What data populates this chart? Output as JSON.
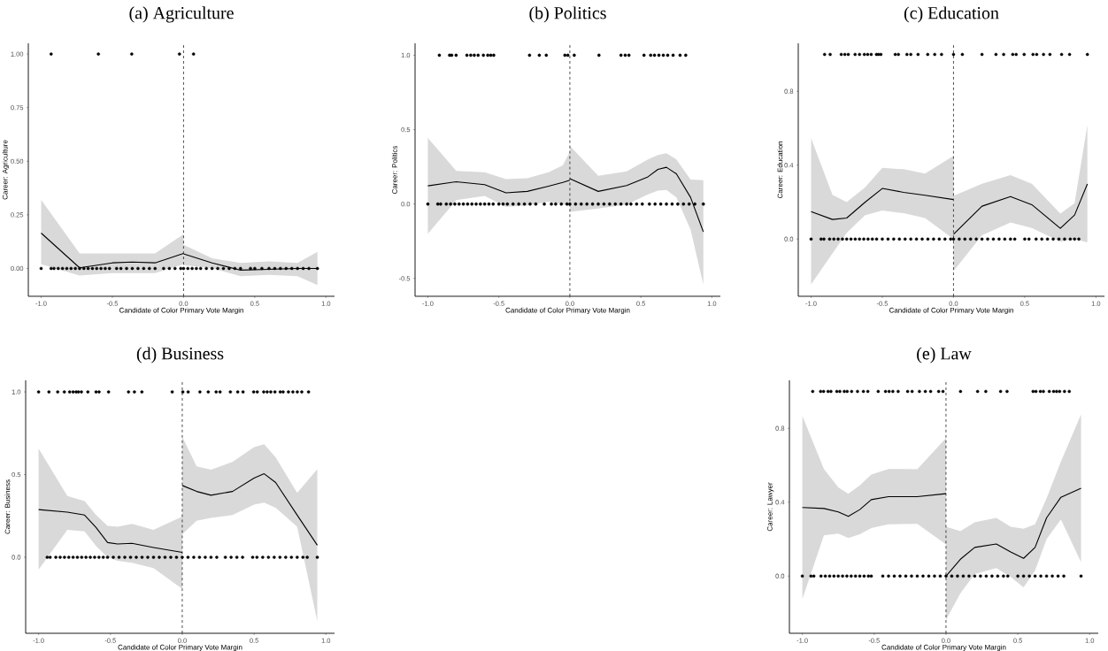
{
  "chart_data": [
    {
      "type": "line",
      "title": "(a) Agriculture",
      "xlabel": "Candidate of Color Primary Vote Margin",
      "ylabel": "Career: Agriculture",
      "xlim": [
        -1.09,
        1.06
      ],
      "ylim": [
        -0.13,
        1.05
      ],
      "xticks": [
        {
          "value": -1,
          "label": "-1.0"
        },
        {
          "value": -0.5,
          "label": "-0.5"
        },
        {
          "value": 0,
          "label": "0.0"
        },
        {
          "value": 0.5,
          "label": "0.5"
        },
        {
          "value": 1,
          "label": "1.0"
        }
      ],
      "yticks": [
        {
          "value": 0,
          "label": "0.00"
        },
        {
          "value": 0.25,
          "label": "0.25"
        },
        {
          "value": 0.5,
          "label": "0.50"
        },
        {
          "value": 0.75,
          "label": "0.75"
        },
        {
          "value": 1,
          "label": "1.00"
        }
      ],
      "ref_lines": [
        {
          "axis": "x",
          "value": 0,
          "color": "#000000",
          "line_style": "dashed"
        }
      ],
      "series": [
        {
          "type": "line",
          "color": "#000000",
          "x": [
            -1,
            -0.73,
            -0.5,
            -0.36,
            -0.2,
            0
          ],
          "values": [
            0.165,
            0.003,
            0.026,
            0.03,
            0.026,
            0.07
          ],
          "upper": [
            0.32,
            0.07,
            0.07,
            0.07,
            0.07,
            0.16
          ],
          "lower": [
            0.02,
            -0.033,
            -0.022,
            -0.022,
            -0.022,
            0.02
          ]
        },
        {
          "type": "line",
          "color": "#000000",
          "x": [
            0,
            0.2,
            0.4,
            0.6,
            0.8,
            0.94
          ],
          "values": [
            0.068,
            0.026,
            -0.008,
            -0.004,
            0,
            0
          ],
          "upper": [
            0.11,
            0.047,
            0.026,
            0.033,
            0.026,
            0.077
          ],
          "lower": [
            0.015,
            0.001,
            -0.036,
            -0.03,
            -0.036,
            -0.077
          ]
        },
        {
          "type": "scatter",
          "color": "#000000",
          "marker": "circle",
          "x": [
            -0.93,
            -0.598,
            -0.364,
            -0.029,
            0.07
          ],
          "values": [
            1,
            1,
            1,
            1,
            1
          ]
        },
        {
          "type": "scatter",
          "color": "#000000",
          "marker": "circle",
          "x": [
            -1.0,
            -0.93,
            -0.91,
            -0.88,
            -0.85,
            -0.82,
            -0.79,
            -0.76,
            -0.73,
            -0.7,
            -0.67,
            -0.64,
            -0.61,
            -0.58,
            -0.55,
            -0.52,
            -0.47,
            -0.44,
            -0.4,
            -0.36,
            -0.32,
            -0.28,
            -0.24,
            -0.2,
            -0.14,
            -0.1,
            -0.06,
            -0.02,
            0.0,
            0.03,
            0.06,
            0.09,
            0.12,
            0.16,
            0.2,
            0.24,
            0.28,
            0.32,
            0.36,
            0.4,
            0.47,
            0.5,
            0.55,
            0.6,
            0.64,
            0.68,
            0.72,
            0.76,
            0.8,
            0.84,
            0.88,
            0.94
          ],
          "values": [
            0,
            0,
            0,
            0,
            0,
            0,
            0,
            0,
            0,
            0,
            0,
            0,
            0,
            0,
            0,
            0,
            0,
            0,
            0,
            0,
            0,
            0,
            0,
            0,
            0,
            0,
            0,
            0,
            0,
            0,
            0,
            0,
            0,
            0,
            0,
            0,
            0,
            0,
            0,
            0,
            0,
            0,
            0,
            0,
            0,
            0,
            0,
            0,
            0,
            0,
            0,
            0
          ]
        }
      ]
    },
    {
      "type": "line",
      "title": "(b) Politics",
      "xlabel": "Candidate of Color Primary Vote Margin",
      "ylabel": "Career: Politics",
      "xlim": [
        -1.09,
        1.06
      ],
      "ylim": [
        -0.62,
        1.08
      ],
      "xticks": [
        {
          "value": -1,
          "label": "-1.0"
        },
        {
          "value": -0.5,
          "label": "-0.5"
        },
        {
          "value": 0,
          "label": "0.0"
        },
        {
          "value": 0.5,
          "label": "0.5"
        },
        {
          "value": 1,
          "label": "1.0"
        }
      ],
      "yticks": [
        {
          "value": -0.5,
          "label": "-0.5"
        },
        {
          "value": 0,
          "label": "0.0"
        },
        {
          "value": 0.5,
          "label": "0.5"
        },
        {
          "value": 1,
          "label": "1.0"
        }
      ],
      "ref_lines": [
        {
          "axis": "x",
          "value": 0,
          "color": "#000000",
          "line_style": "dashed"
        }
      ],
      "series": [
        {
          "type": "line",
          "color": "#000000",
          "x": [
            -1,
            -0.8,
            -0.6,
            -0.45,
            -0.3,
            -0.15,
            -0.05,
            0
          ],
          "values": [
            0.122,
            0.15,
            0.13,
            0.075,
            0.085,
            0.12,
            0.145,
            0.16
          ],
          "upper": [
            0.444,
            0.223,
            0.213,
            0.168,
            0.174,
            0.213,
            0.26,
            0.35
          ],
          "lower": [
            -0.2,
            0.026,
            0.055,
            -0.018,
            -0.01,
            0.016,
            0.0,
            -0.014
          ]
        },
        {
          "type": "line",
          "color": "#000000",
          "x": [
            0,
            0.2,
            0.4,
            0.55,
            0.62,
            0.68,
            0.75,
            0.85,
            0.94
          ],
          "values": [
            0.17,
            0.085,
            0.124,
            0.183,
            0.233,
            0.247,
            0.203,
            0.045,
            -0.187
          ],
          "upper": [
            0.39,
            0.19,
            0.22,
            0.3,
            0.33,
            0.341,
            0.3,
            0.164,
            0.16
          ],
          "lower": [
            -0.053,
            -0.03,
            -0.004,
            0.065,
            0.09,
            0.095,
            0.045,
            -0.172,
            -0.542
          ]
        },
        {
          "type": "scatter",
          "color": "#000000",
          "marker": "circle",
          "x": [
            -0.919,
            -0.847,
            -0.832,
            -0.801,
            -0.725,
            -0.698,
            -0.673,
            -0.646,
            -0.609,
            -0.578,
            -0.557,
            -0.536,
            -0.284,
            -0.215,
            -0.166,
            -0.035,
            -0.014,
            0.031,
            0.205,
            0.36,
            0.39,
            0.416,
            0.522,
            0.569,
            0.596,
            0.627,
            0.658,
            0.689,
            0.727,
            0.776,
            0.816
          ],
          "values": [
            1,
            1,
            1,
            1,
            1,
            1,
            1,
            1,
            1,
            1,
            1,
            1,
            1,
            1,
            1,
            1,
            1,
            1,
            1,
            1,
            1,
            1,
            1,
            1,
            1,
            1,
            1,
            1,
            1,
            1,
            1
          ]
        },
        {
          "type": "scatter",
          "color": "#000000",
          "marker": "circle",
          "x": [
            -1.0,
            -0.93,
            -0.91,
            -0.87,
            -0.84,
            -0.81,
            -0.78,
            -0.75,
            -0.72,
            -0.69,
            -0.66,
            -0.63,
            -0.6,
            -0.57,
            -0.54,
            -0.5,
            -0.47,
            -0.44,
            -0.4,
            -0.36,
            -0.32,
            -0.28,
            -0.24,
            -0.18,
            -0.13,
            -0.1,
            -0.06,
            -0.02,
            0.0,
            0.04,
            0.08,
            0.12,
            0.16,
            0.2,
            0.24,
            0.28,
            0.32,
            0.36,
            0.4,
            0.43,
            0.47,
            0.51,
            0.56,
            0.6,
            0.64,
            0.68,
            0.72,
            0.76,
            0.8,
            0.84,
            0.88,
            0.94
          ],
          "values": [
            0,
            0,
            0,
            0,
            0,
            0,
            0,
            0,
            0,
            0,
            0,
            0,
            0,
            0,
            0,
            0,
            0,
            0,
            0,
            0,
            0,
            0,
            0,
            0,
            0,
            0,
            0,
            0,
            0,
            0,
            0,
            0,
            0,
            0,
            0,
            0,
            0,
            0,
            0,
            0,
            0,
            0,
            0,
            0,
            0,
            0,
            0,
            0,
            0,
            0,
            0,
            0
          ]
        }
      ]
    },
    {
      "type": "line",
      "title": "(c) Education",
      "xlabel": "Candidate of Color Primary Vote Margin",
      "ylabel": "Career: Education",
      "xlim": [
        -1.09,
        1.06
      ],
      "ylim": [
        -0.31,
        1.06
      ],
      "xticks": [
        {
          "value": -1,
          "label": "-1.0"
        },
        {
          "value": -0.5,
          "label": "-0.5"
        },
        {
          "value": 0,
          "label": "0.0"
        },
        {
          "value": 0.5,
          "label": "0.5"
        },
        {
          "value": 1,
          "label": "1.0"
        }
      ],
      "yticks": [
        {
          "value": 0,
          "label": "0.0"
        },
        {
          "value": 0.4,
          "label": "0.4"
        },
        {
          "value": 0.8,
          "label": "0.8"
        }
      ],
      "ref_lines": [
        {
          "axis": "x",
          "value": 0,
          "color": "#000000",
          "line_style": "dashed"
        }
      ],
      "series": [
        {
          "type": "line",
          "color": "#000000",
          "x": [
            -1,
            -0.85,
            -0.75,
            -0.62,
            -0.5,
            -0.35,
            -0.2,
            0
          ],
          "values": [
            0.149,
            0.106,
            0.114,
            0.2,
            0.274,
            0.253,
            0.237,
            0.214
          ],
          "upper": [
            0.546,
            0.24,
            0.2,
            0.28,
            0.386,
            0.378,
            0.354,
            0.45
          ],
          "lower": [
            -0.246,
            -0.078,
            0.034,
            0.13,
            0.154,
            0.14,
            0.114,
            0.0
          ]
        },
        {
          "type": "line",
          "color": "#000000",
          "x": [
            0,
            0.2,
            0.4,
            0.55,
            0.75,
            0.85,
            0.94
          ],
          "values": [
            0.026,
            0.178,
            0.23,
            0.186,
            0.058,
            0.13,
            0.298
          ],
          "upper": [
            0.234,
            0.3,
            0.346,
            0.3,
            0.138,
            0.194,
            0.618
          ],
          "lower": [
            -0.174,
            0.02,
            0.09,
            0.06,
            -0.014,
            0.0,
            -0.018
          ]
        },
        {
          "type": "scatter",
          "color": "#000000",
          "marker": "circle",
          "x": [
            -0.905,
            -0.866,
            -0.788,
            -0.763,
            -0.739,
            -0.691,
            -0.66,
            -0.626,
            -0.603,
            -0.578,
            -0.541,
            -0.527,
            -0.51,
            -0.409,
            -0.387,
            -0.327,
            -0.3,
            -0.249,
            -0.181,
            -0.132,
            -0.084,
            0,
            0.062,
            0.2,
            0.298,
            0.352,
            0.416,
            0.44,
            0.496,
            0.558,
            0.584,
            0.632,
            0.677,
            0.759,
            0.815,
            0.94
          ],
          "values": [
            1,
            1,
            1,
            1,
            1,
            1,
            1,
            1,
            1,
            1,
            1,
            1,
            1,
            1,
            1,
            1,
            1,
            1,
            1,
            1,
            1,
            1,
            1,
            1,
            1,
            1,
            1,
            1,
            1,
            1,
            1,
            1,
            1,
            1,
            1,
            1
          ]
        },
        {
          "type": "scatter",
          "color": "#000000",
          "marker": "circle",
          "x": [
            -1.0,
            -0.93,
            -0.91,
            -0.87,
            -0.84,
            -0.81,
            -0.78,
            -0.75,
            -0.72,
            -0.69,
            -0.66,
            -0.63,
            -0.6,
            -0.57,
            -0.54,
            -0.5,
            -0.46,
            -0.42,
            -0.38,
            -0.34,
            -0.3,
            -0.26,
            -0.22,
            -0.18,
            -0.14,
            -0.1,
            -0.06,
            -0.02,
            0.0,
            0.04,
            0.08,
            0.12,
            0.16,
            0.2,
            0.24,
            0.28,
            0.32,
            0.36,
            0.4,
            0.43,
            0.5,
            0.53,
            0.58,
            0.62,
            0.66,
            0.7,
            0.74,
            0.78,
            0.82,
            0.85,
            0.88
          ],
          "values": [
            0,
            0,
            0,
            0,
            0,
            0,
            0,
            0,
            0,
            0,
            0,
            0,
            0,
            0,
            0,
            0,
            0,
            0,
            0,
            0,
            0,
            0,
            0,
            0,
            0,
            0,
            0,
            0,
            0,
            0,
            0,
            0,
            0,
            0,
            0,
            0,
            0,
            0,
            0,
            0,
            0,
            0,
            0,
            0,
            0,
            0,
            0,
            0,
            0,
            0,
            0
          ]
        }
      ]
    },
    {
      "type": "line",
      "title": "(d) Business",
      "xlabel": "Candidate of Color Primary Vote Margin",
      "ylabel": "Career: Business",
      "xlim": [
        -1.09,
        1.06
      ],
      "ylim": [
        -0.46,
        1.07
      ],
      "xticks": [
        {
          "value": -1,
          "label": "-1.0"
        },
        {
          "value": -0.5,
          "label": "-0.5"
        },
        {
          "value": 0,
          "label": "0.0"
        },
        {
          "value": 0.5,
          "label": "0.5"
        },
        {
          "value": 1,
          "label": "1.0"
        }
      ],
      "yticks": [
        {
          "value": 0,
          "label": "0.0"
        },
        {
          "value": 0.5,
          "label": "0.5"
        },
        {
          "value": 1,
          "label": "1.0"
        }
      ],
      "ref_lines": [
        {
          "axis": "x",
          "value": 0,
          "color": "#000000",
          "line_style": "dashed"
        }
      ],
      "series": [
        {
          "type": "line",
          "color": "#000000",
          "x": [
            -1,
            -0.8,
            -0.68,
            -0.6,
            -0.52,
            -0.45,
            -0.35,
            -0.2,
            0
          ],
          "values": [
            0.288,
            0.273,
            0.255,
            0.18,
            0.089,
            0.08,
            0.084,
            0.059,
            0.029
          ],
          "upper": [
            0.657,
            0.371,
            0.34,
            0.255,
            0.19,
            0.184,
            0.202,
            0.166,
            0.246
          ],
          "lower": [
            -0.075,
            0.166,
            0.157,
            0.068,
            0.0,
            -0.021,
            -0.034,
            -0.066,
            -0.191
          ]
        },
        {
          "type": "line",
          "color": "#000000",
          "x": [
            0,
            0.1,
            0.2,
            0.35,
            0.5,
            0.57,
            0.65,
            0.8,
            0.94
          ],
          "values": [
            0.434,
            0.398,
            0.375,
            0.398,
            0.479,
            0.505,
            0.452,
            0.255,
            0.073
          ],
          "upper": [
            0.729,
            0.55,
            0.529,
            0.577,
            0.666,
            0.684,
            0.604,
            0.389,
            0.532
          ],
          "lower": [
            0.139,
            0.22,
            0.238,
            0.255,
            0.318,
            0.33,
            0.3,
            0.184,
            -0.387
          ]
        },
        {
          "type": "scatter",
          "color": "#000000",
          "marker": "circle",
          "x": [
            -1.0,
            -0.928,
            -0.867,
            -0.821,
            -0.784,
            -0.76,
            -0.739,
            -0.723,
            -0.702,
            -0.657,
            -0.6,
            -0.579,
            -0.513,
            -0.374,
            -0.333,
            -0.281,
            -0.07,
            0.004,
            0.041,
            0.123,
            0.181,
            0.236,
            0.263,
            0.335,
            0.386,
            0.423,
            0.497,
            0.522,
            0.567,
            0.591,
            0.616,
            0.645,
            0.682,
            0.702,
            0.739,
            0.77,
            0.801,
            0.832,
            0.879
          ],
          "values": [
            1,
            1,
            1,
            1,
            1,
            1,
            1,
            1,
            1,
            1,
            1,
            1,
            1,
            1,
            1,
            1,
            1,
            1,
            1,
            1,
            1,
            1,
            1,
            1,
            1,
            1,
            1,
            1,
            1,
            1,
            1,
            1,
            1,
            1,
            1,
            1,
            1,
            1,
            1
          ]
        },
        {
          "type": "scatter",
          "color": "#000000",
          "marker": "circle",
          "x": [
            -0.94,
            -0.92,
            -0.88,
            -0.85,
            -0.82,
            -0.79,
            -0.76,
            -0.73,
            -0.7,
            -0.67,
            -0.64,
            -0.61,
            -0.58,
            -0.55,
            -0.52,
            -0.48,
            -0.44,
            -0.4,
            -0.36,
            -0.32,
            -0.28,
            -0.24,
            -0.2,
            -0.16,
            -0.12,
            -0.08,
            -0.04,
            0.0,
            0.04,
            0.08,
            0.12,
            0.16,
            0.2,
            0.24,
            0.3,
            0.34,
            0.38,
            0.42,
            0.49,
            0.52,
            0.56,
            0.6,
            0.64,
            0.68,
            0.72,
            0.76,
            0.8,
            0.84,
            0.87,
            0.94
          ],
          "values": [
            0,
            0,
            0,
            0,
            0,
            0,
            0,
            0,
            0,
            0,
            0,
            0,
            0,
            0,
            0,
            0,
            0,
            0,
            0,
            0,
            0,
            0,
            0,
            0,
            0,
            0,
            0,
            0,
            0,
            0,
            0,
            0,
            0,
            0,
            0,
            0,
            0,
            0,
            0,
            0,
            0,
            0,
            0,
            0,
            0,
            0,
            0,
            0,
            0,
            0
          ]
        }
      ]
    },
    {
      "type": "line",
      "title": "(e) Law",
      "xlabel": "Candidate of Color Primary Vote Margin",
      "ylabel": "Career: Lawyer",
      "xlim": [
        -1.09,
        1.06
      ],
      "ylim": [
        -0.31,
        1.06
      ],
      "xticks": [
        {
          "value": -1,
          "label": "-1.0"
        },
        {
          "value": -0.5,
          "label": "-0.5"
        },
        {
          "value": 0,
          "label": "0.0"
        },
        {
          "value": 0.5,
          "label": "0.5"
        },
        {
          "value": 1,
          "label": "1.0"
        }
      ],
      "yticks": [
        {
          "value": 0,
          "label": "0.0"
        },
        {
          "value": 0.4,
          "label": "0.4"
        },
        {
          "value": 0.8,
          "label": "0.8"
        }
      ],
      "ref_lines": [
        {
          "axis": "x",
          "value": 0,
          "color": "#000000",
          "line_style": "dashed"
        }
      ],
      "series": [
        {
          "type": "line",
          "color": "#000000",
          "x": [
            -1,
            -0.85,
            -0.75,
            -0.68,
            -0.6,
            -0.52,
            -0.4,
            -0.2,
            0
          ],
          "values": [
            0.371,
            0.366,
            0.347,
            0.323,
            0.36,
            0.414,
            0.43,
            0.43,
            0.446
          ],
          "upper": [
            0.867,
            0.58,
            0.48,
            0.446,
            0.491,
            0.55,
            0.58,
            0.579,
            0.747
          ],
          "lower": [
            -0.125,
            0.22,
            0.23,
            0.206,
            0.227,
            0.26,
            0.28,
            0.283,
            0.171
          ]
        },
        {
          "type": "line",
          "color": "#000000",
          "x": [
            0,
            0.1,
            0.2,
            0.35,
            0.45,
            0.54,
            0.62,
            0.7,
            0.8,
            0.94
          ],
          "values": [
            0.0,
            0.091,
            0.155,
            0.174,
            0.131,
            0.096,
            0.155,
            0.315,
            0.427,
            0.475
          ],
          "upper": [
            0.267,
            0.243,
            0.291,
            0.315,
            0.267,
            0.256,
            0.28,
            0.42,
            0.62,
            0.875
          ],
          "lower": [
            -0.237,
            -0.093,
            0.011,
            0.043,
            -0.005,
            -0.061,
            0.03,
            0.2,
            0.307,
            0.075
          ]
        },
        {
          "type": "scatter",
          "color": "#000000",
          "marker": "circle",
          "x": [
            -0.928,
            -0.873,
            -0.852,
            -0.821,
            -0.801,
            -0.76,
            -0.739,
            -0.708,
            -0.688,
            -0.657,
            -0.616,
            -0.575,
            -0.544,
            -0.472,
            -0.421,
            -0.396,
            -0.37,
            -0.333,
            -0.267,
            -0.236,
            -0.185,
            -0.144,
            -0.107,
            -0.051,
            -0.021,
            0.101,
            0.22,
            0.277,
            0.38,
            0.425,
            0.606,
            0.626,
            0.657,
            0.678,
            0.719,
            0.749,
            0.77,
            0.791,
            0.825,
            0.858
          ],
          "values": [
            1,
            1,
            1,
            1,
            1,
            1,
            1,
            1,
            1,
            1,
            1,
            1,
            1,
            1,
            1,
            1,
            1,
            1,
            1,
            1,
            1,
            1,
            1,
            1,
            1,
            1,
            1,
            1,
            1,
            1,
            1,
            1,
            1,
            1,
            1,
            1,
            1,
            1,
            1,
            1
          ]
        },
        {
          "type": "scatter",
          "color": "#000000",
          "marker": "circle",
          "x": [
            -1.0,
            -0.94,
            -0.92,
            -0.87,
            -0.84,
            -0.81,
            -0.78,
            -0.75,
            -0.72,
            -0.69,
            -0.66,
            -0.63,
            -0.6,
            -0.57,
            -0.54,
            -0.52,
            -0.44,
            -0.4,
            -0.36,
            -0.32,
            -0.28,
            -0.24,
            -0.2,
            -0.16,
            -0.12,
            -0.08,
            -0.04,
            0.0,
            0.04,
            0.08,
            0.12,
            0.16,
            0.2,
            0.24,
            0.28,
            0.32,
            0.36,
            0.4,
            0.43,
            0.5,
            0.54,
            0.58,
            0.62,
            0.66,
            0.7,
            0.74,
            0.78,
            0.82,
            0.94
          ],
          "values": [
            0,
            0,
            0,
            0,
            0,
            0,
            0,
            0,
            0,
            0,
            0,
            0,
            0,
            0,
            0,
            0,
            0,
            0,
            0,
            0,
            0,
            0,
            0,
            0,
            0,
            0,
            0,
            0,
            0,
            0,
            0,
            0,
            0,
            0,
            0,
            0,
            0,
            0,
            0,
            0,
            0,
            0,
            0,
            0,
            0,
            0,
            0,
            0,
            0
          ]
        }
      ]
    }
  ]
}
